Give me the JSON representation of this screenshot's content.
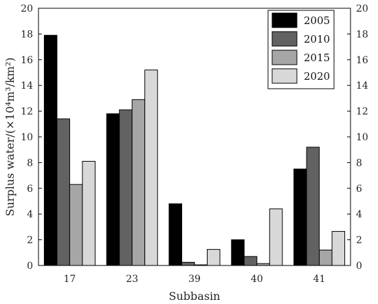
{
  "chart_data": {
    "type": "bar",
    "categories": [
      "17",
      "23",
      "39",
      "40",
      "41"
    ],
    "series": [
      {
        "name": "2005",
        "values": [
          17.9,
          11.8,
          4.8,
          2.0,
          7.5
        ],
        "color": "#000000"
      },
      {
        "name": "2010",
        "values": [
          11.4,
          12.1,
          0.25,
          0.7,
          9.2
        ],
        "color": "#626262"
      },
      {
        "name": "2015",
        "values": [
          6.3,
          12.9,
          0.05,
          0.15,
          1.2
        ],
        "color": "#a6a6a6"
      },
      {
        "name": "2020",
        "values": [
          8.1,
          15.2,
          1.25,
          4.4,
          2.65
        ],
        "color": "#d8d8d8"
      }
    ],
    "xlabel": "Subbasin",
    "ylabel": "Surplus water/(×10⁴m³/km²)",
    "ylim": [
      0,
      20
    ],
    "yticks": [
      0,
      2,
      4,
      6,
      8,
      10,
      12,
      14,
      16,
      18,
      20
    ],
    "right_axis_ticks": true,
    "grid": false,
    "legend_position": "top-right"
  }
}
